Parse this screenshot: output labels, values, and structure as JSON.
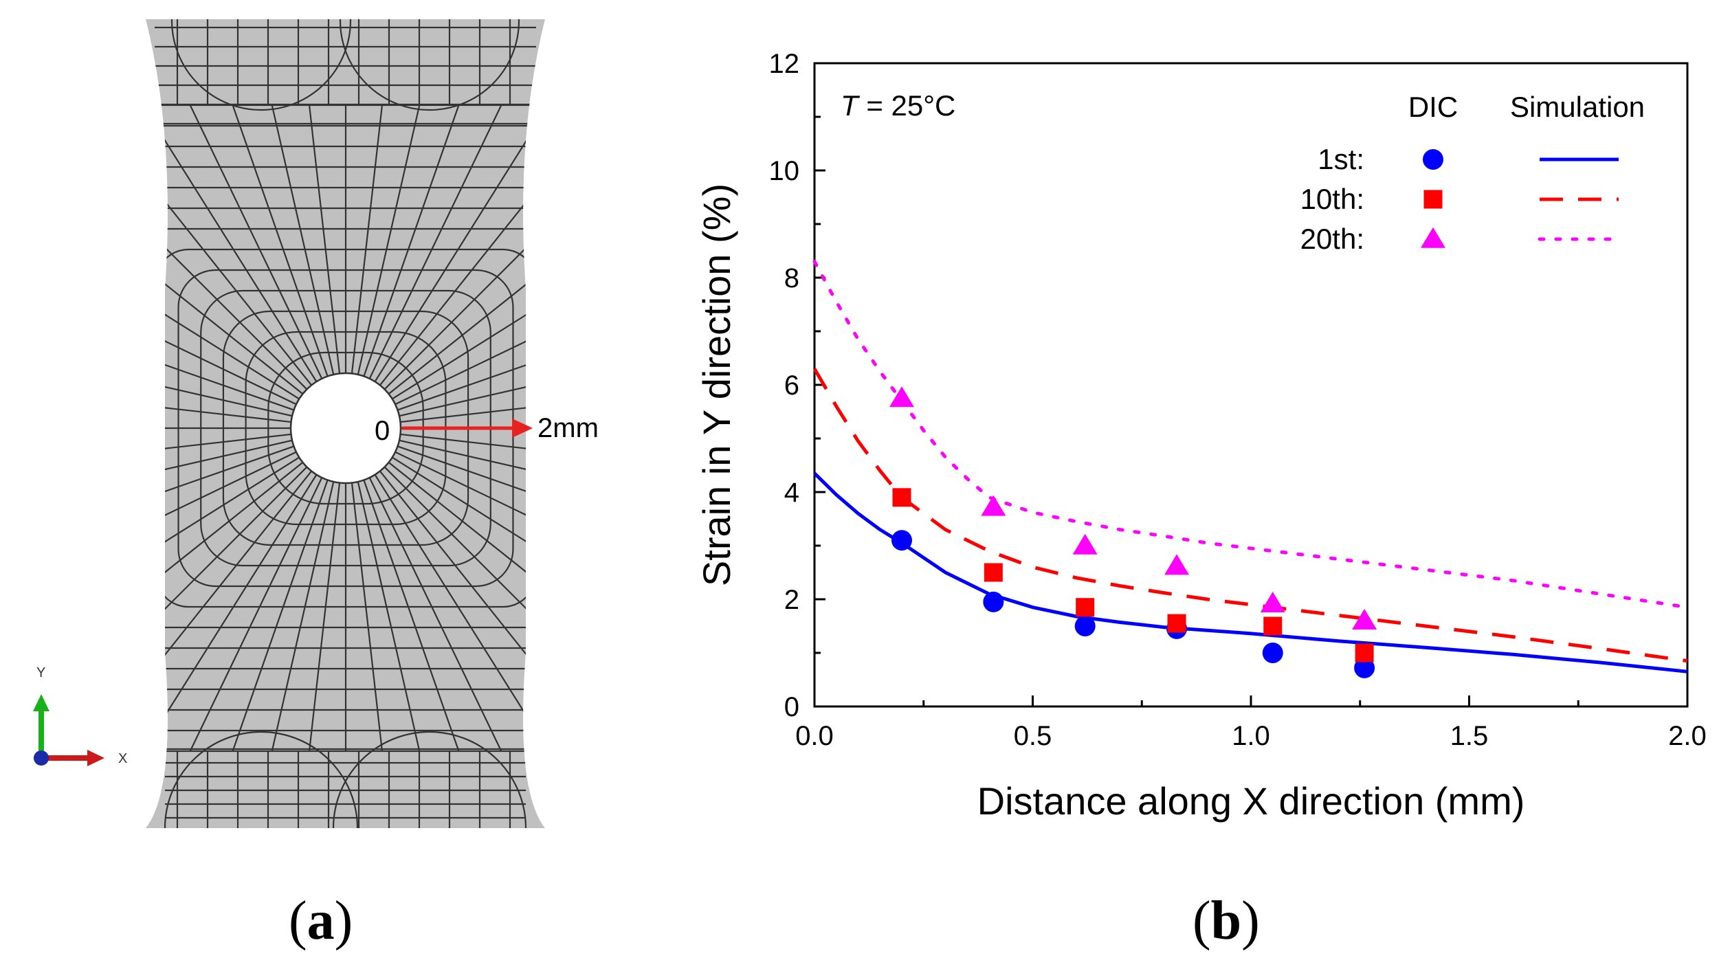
{
  "panel_a": {
    "label_open": "(",
    "label_letter": "a",
    "label_close": ")",
    "start_label": "0",
    "end_label": "2mm",
    "axis_y_label": "Y",
    "axis_x_label": "X",
    "colors": {
      "mesh_fill": "#c0c0c0",
      "mesh_line": "#333333",
      "arrow": "#e8231f",
      "y_axis": "#1ab01a",
      "x_axis": "#cc1a1a",
      "origin": "#1a2aa8"
    }
  },
  "panel_b": {
    "label_open": "(",
    "label_letter": "b",
    "label_close": ")"
  },
  "chart_data": {
    "type": "scatter",
    "xlabel": "Distance along X direction (mm)",
    "ylabel": "Strain in Y direction (%)",
    "xlim": [
      0,
      2.0
    ],
    "ylim": [
      0,
      12
    ],
    "xticks": [
      "0.0",
      "0.5",
      "1.0",
      "1.5",
      "2.0"
    ],
    "yticks": [
      "0",
      "2",
      "4",
      "6",
      "8",
      "10",
      "12"
    ],
    "annotation": {
      "italic": "T",
      "text": " = 25°C"
    },
    "legend": {
      "header_dic": "DIC",
      "header_sim": "Simulation",
      "position": "top-right"
    },
    "series": [
      {
        "name": "1st:",
        "color": "#0000ff",
        "marker": "circle",
        "line_style": "solid",
        "dic_x": [
          0.2,
          0.41,
          0.62,
          0.83,
          1.05,
          1.26
        ],
        "dic_y": [
          3.1,
          1.95,
          1.5,
          1.45,
          1.0,
          0.72
        ],
        "sim_x": [
          0,
          0.05,
          0.1,
          0.15,
          0.2,
          0.3,
          0.4,
          0.5,
          0.6,
          0.7,
          0.8,
          0.9,
          1.0,
          1.2,
          1.4,
          1.6,
          1.8,
          2.0
        ],
        "sim_y": [
          4.35,
          3.95,
          3.6,
          3.3,
          3.05,
          2.5,
          2.1,
          1.85,
          1.68,
          1.57,
          1.48,
          1.42,
          1.36,
          1.22,
          1.1,
          0.97,
          0.82,
          0.65
        ]
      },
      {
        "name": "10th:",
        "color": "#ff0000",
        "marker": "square",
        "line_style": "dashed",
        "dic_x": [
          0.2,
          0.41,
          0.62,
          0.83,
          1.05,
          1.26
        ],
        "dic_y": [
          3.9,
          2.5,
          1.85,
          1.55,
          1.5,
          1.0
        ],
        "sim_x": [
          0,
          0.05,
          0.1,
          0.15,
          0.2,
          0.3,
          0.4,
          0.5,
          0.6,
          0.7,
          0.8,
          0.9,
          1.0,
          1.2,
          1.4,
          1.6,
          1.8,
          2.0
        ],
        "sim_y": [
          6.3,
          5.6,
          4.95,
          4.4,
          3.9,
          3.3,
          2.9,
          2.6,
          2.4,
          2.25,
          2.12,
          2.0,
          1.9,
          1.7,
          1.5,
          1.3,
          1.08,
          0.85
        ]
      },
      {
        "name": "20th:",
        "color": "#ff00ff",
        "marker": "triangle",
        "line_style": "dotted",
        "dic_x": [
          0.2,
          0.41,
          0.62,
          0.83,
          1.05,
          1.26
        ],
        "dic_y": [
          5.75,
          3.72,
          3.0,
          2.62,
          1.92,
          1.6
        ],
        "sim_x": [
          0,
          0.05,
          0.1,
          0.15,
          0.2,
          0.25,
          0.3,
          0.35,
          0.4,
          0.5,
          0.6,
          0.7,
          0.8,
          0.9,
          1.0,
          1.2,
          1.4,
          1.6,
          1.8,
          2.0
        ],
        "sim_y": [
          8.3,
          7.55,
          6.85,
          6.25,
          5.7,
          5.15,
          4.65,
          4.25,
          3.9,
          3.62,
          3.45,
          3.3,
          3.18,
          3.05,
          2.95,
          2.75,
          2.55,
          2.35,
          2.1,
          1.85
        ]
      }
    ]
  }
}
